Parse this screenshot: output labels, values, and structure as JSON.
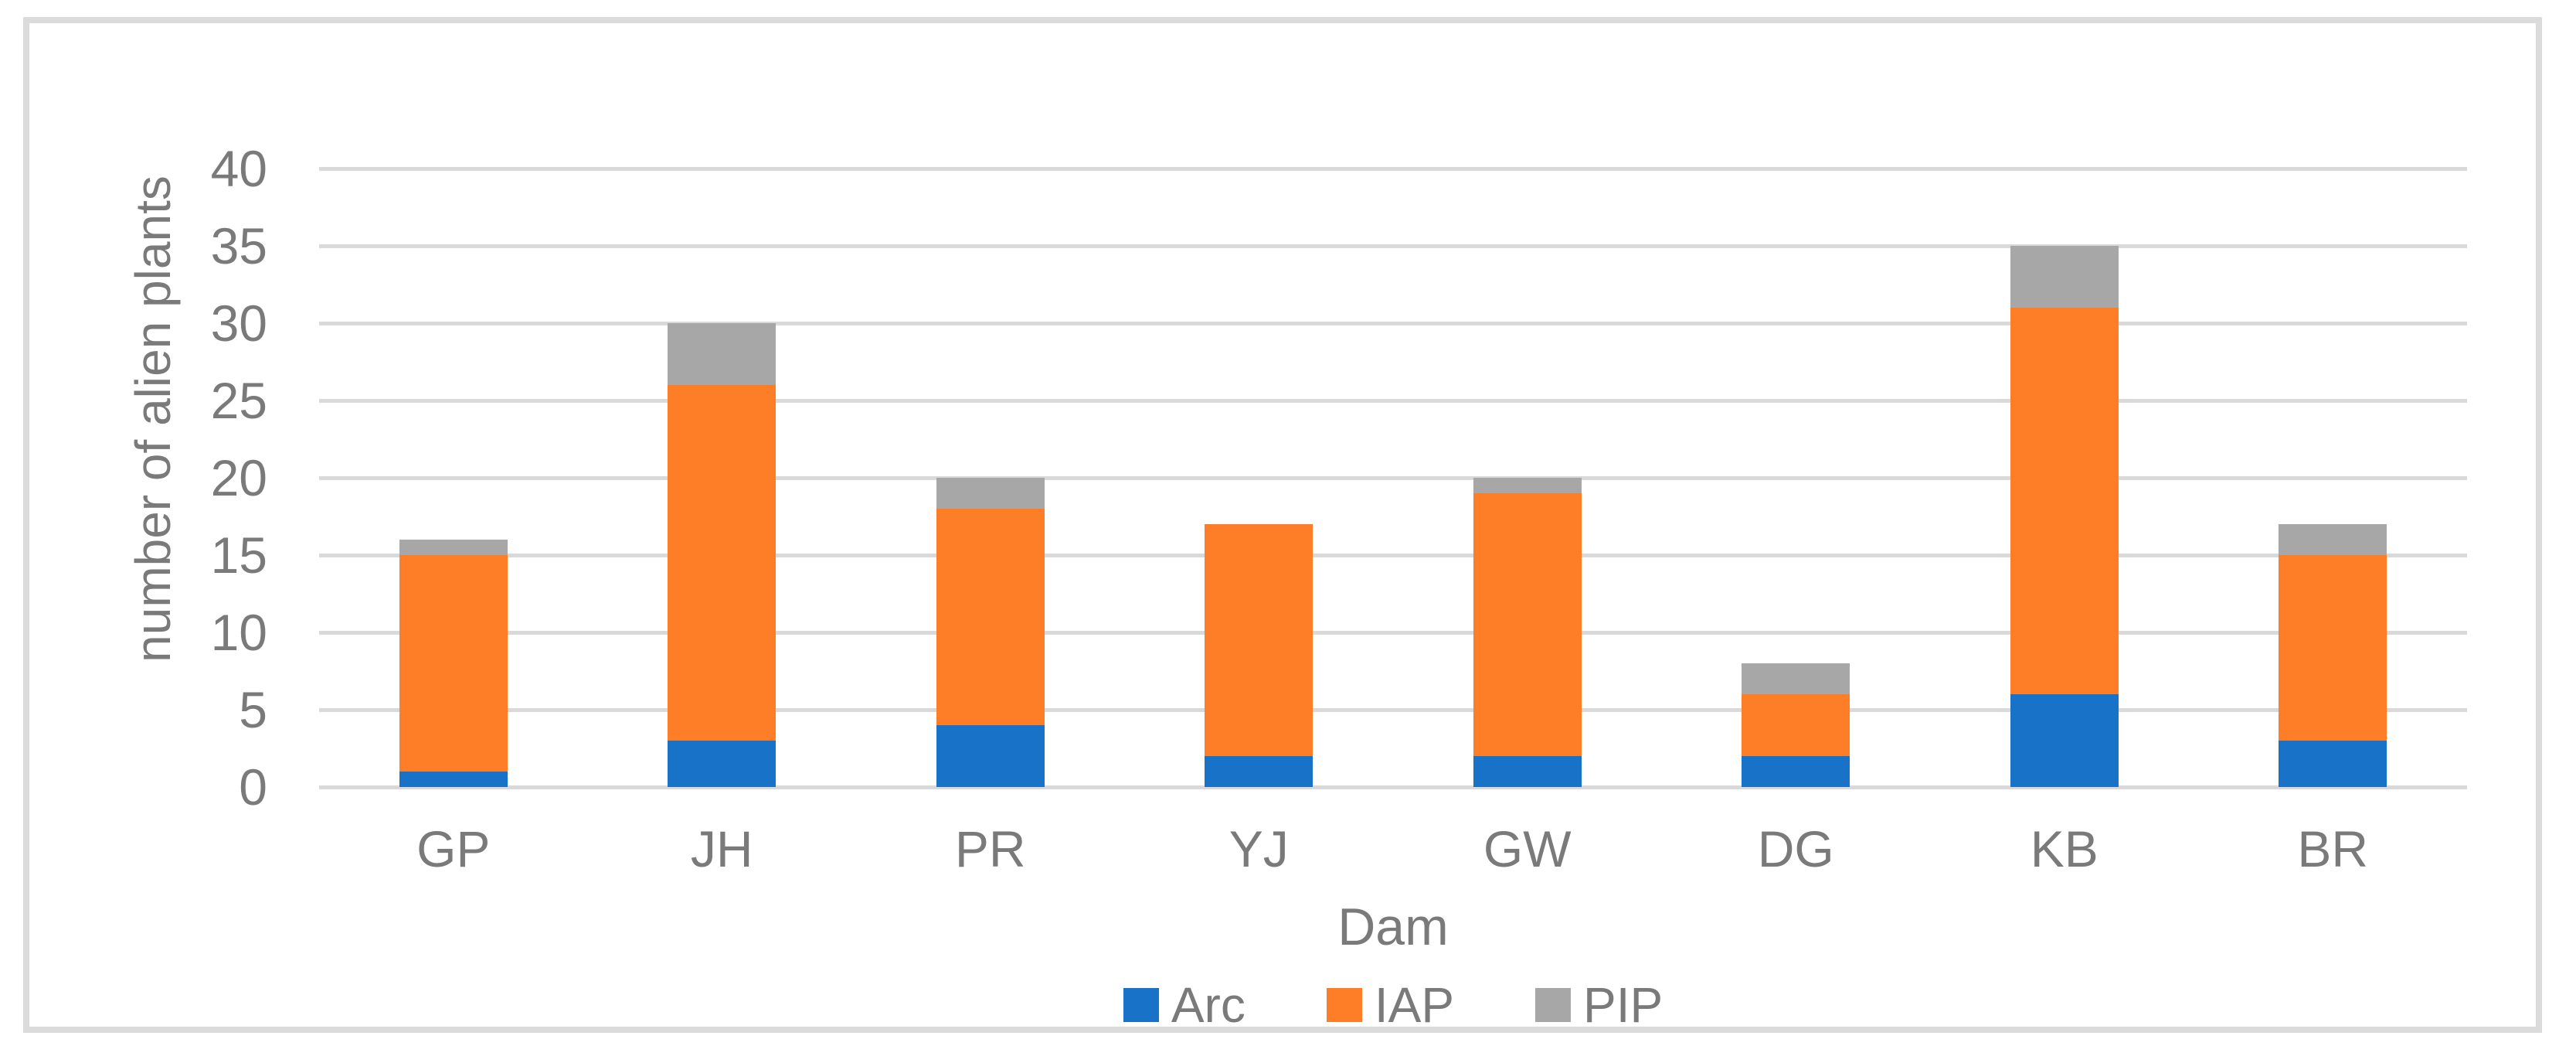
{
  "chart_data": {
    "type": "bar",
    "stacked": true,
    "categories": [
      "GP",
      "JH",
      "PR",
      "YJ",
      "GW",
      "DG",
      "KB",
      "BR"
    ],
    "series": [
      {
        "name": "Arc",
        "color": "#1873C8",
        "values": [
          1,
          3,
          4,
          2,
          2,
          2,
          6,
          3
        ]
      },
      {
        "name": "IAP",
        "color": "#FD7E26",
        "values": [
          14,
          23,
          14,
          15,
          17,
          4,
          25,
          12
        ]
      },
      {
        "name": "PIP",
        "color": "#A7A7A7",
        "values": [
          1,
          4,
          2,
          0,
          1,
          2,
          4,
          2
        ]
      }
    ],
    "title": "",
    "xlabel": "Dam",
    "ylabel": "number of alien plants",
    "ylim": [
      0,
      40
    ],
    "ytick_step": 5,
    "yticks": [
      0,
      5,
      10,
      15,
      20,
      25,
      30,
      35,
      40
    ],
    "grid": true,
    "legend_position": "bottom"
  },
  "styles": {
    "grid_color": "#D9D9D9",
    "frame_border_color": "#DBDBDB",
    "text_color": "#7A7A7A",
    "background": "#FFFFFF"
  }
}
